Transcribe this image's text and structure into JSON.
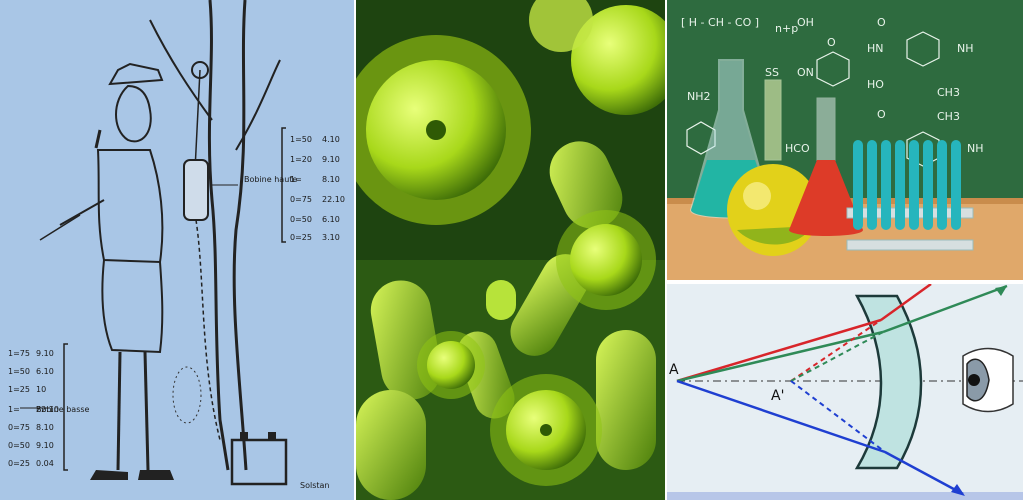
{
  "panels": {
    "sketch": {
      "label_top": "Bobine haute",
      "label_bottom": "Bobine basse",
      "label_signature": "Solstan",
      "table_top": [
        {
          "a": "1=50",
          "b": "4.10"
        },
        {
          "a": "1=20",
          "b": "9.10"
        },
        {
          "a": "1=",
          "b": "8.10"
        },
        {
          "a": "0=75",
          "b": "22.10"
        },
        {
          "a": "0=50",
          "b": "6.10"
        },
        {
          "a": "0=25",
          "b": "3.10"
        }
      ],
      "table_bottom": [
        {
          "a": "1=75",
          "b": "9.10"
        },
        {
          "a": "1=50",
          "b": "6.10"
        },
        {
          "a": "1=25",
          "b": "10"
        },
        {
          "a": "1=",
          "b": "22.10"
        },
        {
          "a": "0=75",
          "b": "8.10"
        },
        {
          "a": "0=50",
          "b": "9.10"
        },
        {
          "a": "0=25",
          "b": "0.04"
        }
      ]
    },
    "chemistry": {
      "formula_top": "[ H - CH - CO ]",
      "formula_subscript": "n+p",
      "formula_oh": "OH",
      "formula_ss": "SS",
      "formula_on": "ON",
      "formula_o": "O",
      "formula_hn": "HN",
      "formula_nh": "NH",
      "formula_ho": "HO",
      "formula_ch3": "CH3",
      "formula_hco": "HCO",
      "formula_nh2": "NH2"
    },
    "optics": {
      "point_a": "A",
      "point_a_prime": "A'"
    }
  },
  "colors": {
    "sketch_bg": "#a9c6e6",
    "microbe": "#a8d81a",
    "board": "#2e6b3f",
    "ray_red": "#d8252a",
    "ray_green": "#2f8a57",
    "ray_blue": "#1f3fd1",
    "lens": "#bfe3e1"
  }
}
